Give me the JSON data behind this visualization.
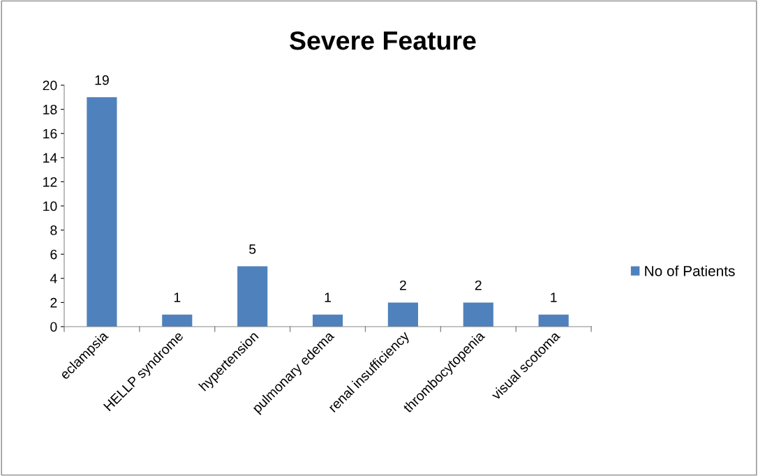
{
  "chart_data": {
    "type": "bar",
    "title": "Severe Feature",
    "categories": [
      "eclampsia",
      "HELLP syndrome",
      "hypertension",
      "pulmonary edema",
      "renal insufficiency",
      "thrombocytopenia",
      "visual scotoma"
    ],
    "series": [
      {
        "name": "No of Patients",
        "color": "#4f81bd",
        "values": [
          19,
          1,
          5,
          1,
          2,
          2,
          1
        ]
      }
    ],
    "ylim": [
      0,
      20
    ],
    "yticks": [
      0,
      2,
      4,
      6,
      8,
      10,
      12,
      14,
      16,
      18,
      20
    ],
    "data_labels": true,
    "legend": "right",
    "grid": false
  }
}
